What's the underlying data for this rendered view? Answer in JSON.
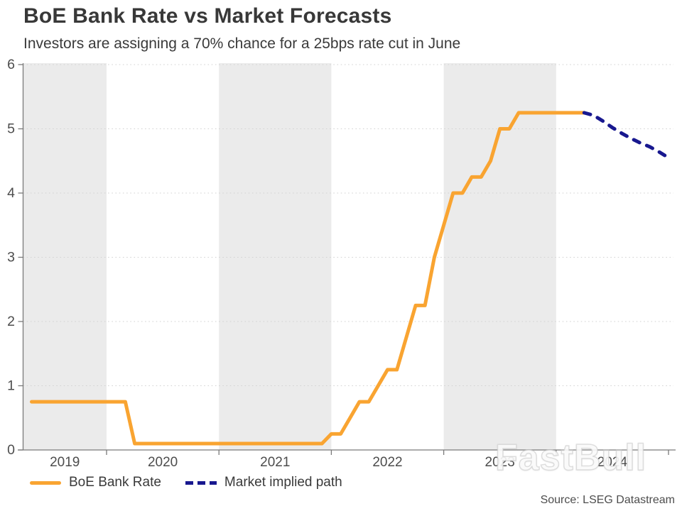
{
  "chart_data": {
    "type": "line",
    "title": "BoE Bank Rate vs Market Forecasts",
    "subtitle": "Investors are assigning a 70% chance for a 25bps rate cut in June",
    "x_axis": {
      "tick_labels": [
        "2019",
        "2020",
        "2021",
        "2022",
        "2023",
        "2024"
      ],
      "start_year_fraction": 2019.33,
      "end_year_fraction": 2025.0
    },
    "y_axis": {
      "min": 0,
      "max": 6,
      "tick_labels": [
        "0",
        "1",
        "2",
        "3",
        "4",
        "5",
        "6"
      ]
    },
    "year_bands": {
      "shaded_years": [
        2019,
        2021,
        2023
      ],
      "color": "#EBEBEB"
    },
    "grid": {
      "color": "#D2D2D2",
      "style": "dotted"
    },
    "axis_color": "#7A7A7A",
    "tick_text_color": "#4D4D4D",
    "series": [
      {
        "name": "BoE Bank Rate",
        "color": "#F9A431",
        "line_style": "solid",
        "start_year": 2019,
        "start_month": 5,
        "monthly_values": [
          0.75,
          0.75,
          0.75,
          0.75,
          0.75,
          0.75,
          0.75,
          0.75,
          0.75,
          0.75,
          0.75,
          0.1,
          0.1,
          0.1,
          0.1,
          0.1,
          0.1,
          0.1,
          0.1,
          0.1,
          0.1,
          0.1,
          0.1,
          0.1,
          0.1,
          0.1,
          0.1,
          0.1,
          0.1,
          0.1,
          0.1,
          0.1,
          0.25,
          0.25,
          0.5,
          0.75,
          0.75,
          1.0,
          1.25,
          1.25,
          1.75,
          2.25,
          2.25,
          3.0,
          3.5,
          4.0,
          4.0,
          4.25,
          4.25,
          4.5,
          5.0,
          5.0,
          5.25,
          5.25,
          5.25,
          5.25,
          5.25,
          5.25,
          5.25,
          5.25
        ]
      },
      {
        "name": "Market implied path",
        "color": "#18188F",
        "line_style": "dashed",
        "start_year": 2024,
        "start_month": 4,
        "monthly_values": [
          5.25,
          5.21,
          5.12,
          5.02,
          4.93,
          4.85,
          4.78,
          4.72,
          4.64,
          4.55
        ]
      }
    ],
    "legend_position": "bottom-left",
    "watermark": "FastBull",
    "source": "Source: LSEG Datastream"
  }
}
